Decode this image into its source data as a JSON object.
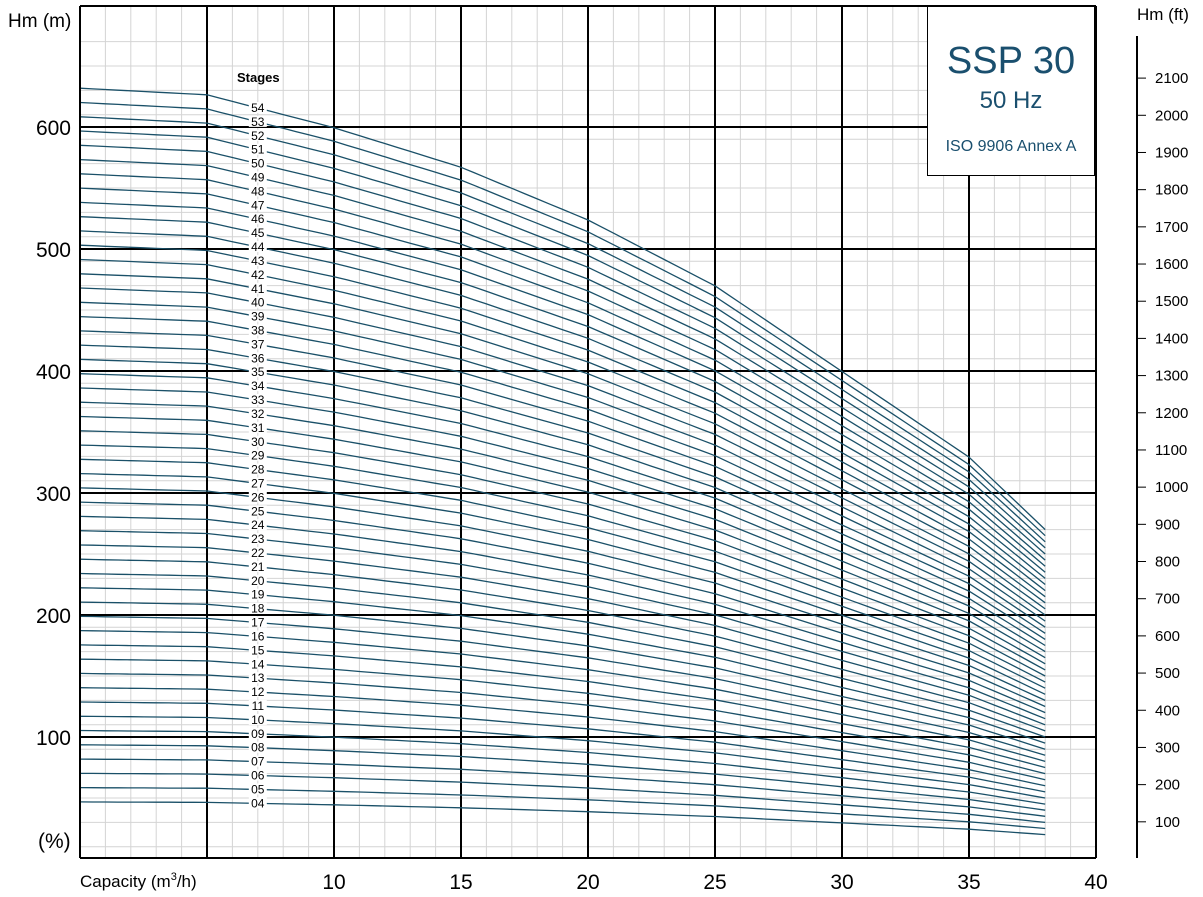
{
  "chart_data": {
    "type": "line",
    "title": "SSP 30",
    "subtitle": "50 Hz",
    "standard": "ISO 9906 Annex A",
    "xlabel": "Capacity (m³/h)",
    "ylabel_left": "Hm (m)",
    "ylabel_right": "Hm (ft)",
    "efficiency_label": "(%)",
    "stages_label": "Stages",
    "xlim": [
      0,
      40
    ],
    "ylim": [
      -10,
      670
    ],
    "x_ticks": [
      "10",
      "15",
      "20",
      "25",
      "30",
      "35",
      "40"
    ],
    "y_ticks": [
      "100",
      "200",
      "300",
      "400",
      "500",
      "600"
    ],
    "y_ticks_ft": [
      "100",
      "200",
      "300",
      "400",
      "500",
      "600",
      "700",
      "800",
      "900",
      "1000",
      "1100",
      "1200",
      "1300",
      "1400",
      "1500",
      "1600",
      "1700",
      "1800",
      "1900",
      "2000",
      "2100"
    ],
    "grid": true,
    "line_color": "#1a5068",
    "curve_model": {
      "x": [
        0,
        5,
        10,
        15,
        20,
        25,
        30,
        35,
        38
      ],
      "head_per_stage_m": [
        11.7,
        11.6,
        11.1,
        10.5,
        9.7,
        8.7,
        7.4,
        6.1,
        5.0
      ]
    },
    "stages": [
      "04",
      "05",
      "06",
      "07",
      "08",
      "09",
      "10",
      "11",
      "12",
      "13",
      "14",
      "15",
      "16",
      "17",
      "18",
      "19",
      "20",
      "21",
      "22",
      "23",
      "24",
      "25",
      "26",
      "27",
      "28",
      "29",
      "30",
      "31",
      "32",
      "33",
      "34",
      "35",
      "36",
      "37",
      "38",
      "39",
      "40",
      "41",
      "42",
      "43",
      "44",
      "45",
      "46",
      "47",
      "48",
      "49",
      "50",
      "51",
      "52",
      "53",
      "54"
    ]
  }
}
